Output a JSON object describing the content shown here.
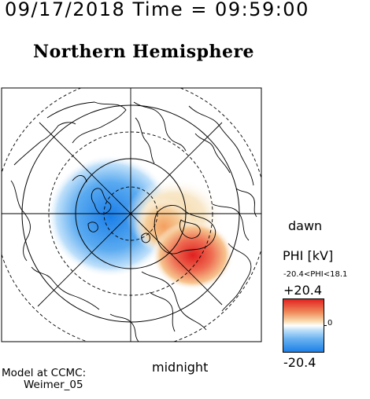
{
  "header": {
    "timestamp": "09/17/2018 Time = 09:59:00",
    "title": "Northern Hemisphere"
  },
  "map": {
    "projection": "polar-stereographic",
    "grid": "dashed latitude circles, solid meridians every 45 degrees",
    "labels": {
      "dawn": "dawn",
      "midnight": "midnight"
    },
    "potential_pattern": {
      "negative_cell": "dusk side, centered near pole shifted toward noon-dusk",
      "positive_cell": "dawn side, extending toward midnight-dawn",
      "max_kV": 18.1,
      "min_kV": -20.4
    }
  },
  "colorbar": {
    "title": "PHI [kV]",
    "range_text": "-20.4<PHI<18.1",
    "max_label": "+20.4",
    "zero_label": "0",
    "min_label": "-20.4",
    "colors": {
      "high": "#e02020",
      "mid_high": "#f4c080",
      "zero": "#ffffff",
      "mid_low": "#80c0f0",
      "low": "#1a7ee8"
    }
  },
  "footer": {
    "model_line1": "Model at CCMC:",
    "model_line2": "Weimer_05"
  }
}
